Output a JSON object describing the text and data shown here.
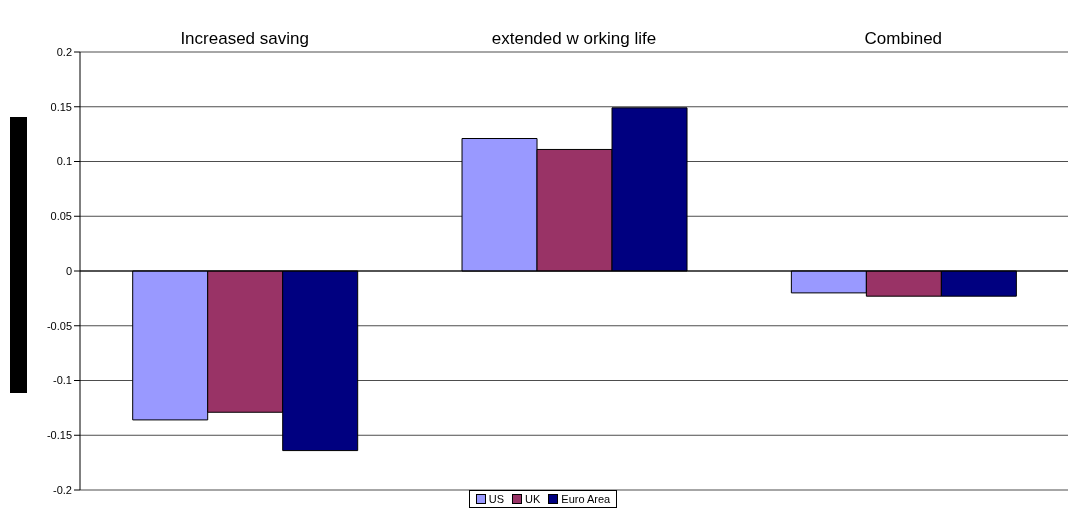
{
  "chart_data": {
    "type": "bar",
    "categories": [
      "Increased saving",
      "extended w orking life",
      "Combined"
    ],
    "series": [
      {
        "name": "US",
        "color": "#9999ff",
        "values": [
          -0.136,
          0.121,
          -0.02
        ]
      },
      {
        "name": "UK",
        "color": "#993366",
        "values": [
          -0.129,
          0.111,
          -0.023
        ]
      },
      {
        "name": "Euro Area",
        "color": "#000080",
        "values": [
          -0.164,
          0.149,
          -0.023
        ]
      }
    ],
    "ylim": [
      -0.2,
      0.2
    ],
    "yticks": [
      -0.2,
      -0.15,
      -0.1,
      -0.05,
      0,
      0.05,
      0.1,
      0.15,
      0.2
    ],
    "grid": "y",
    "legend": "bottom"
  }
}
